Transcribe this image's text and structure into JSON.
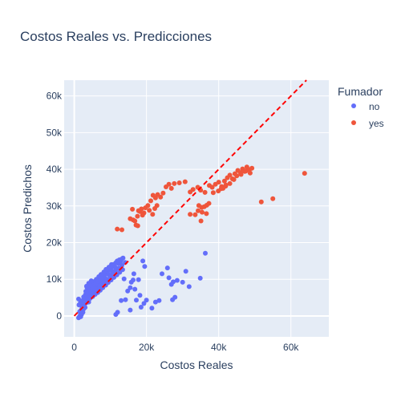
{
  "chart_data": {
    "type": "scatter",
    "title": "Costos Reales vs. Predicciones",
    "xlabel": "Costos Reales",
    "ylabel": "Costos Predichos",
    "xlim": [
      -2800,
      70500
    ],
    "ylim": [
      -5700,
      64300
    ],
    "xticks": [
      0,
      20000,
      40000,
      60000
    ],
    "xtick_labels": [
      "0",
      "20k",
      "40k",
      "60k"
    ],
    "yticks": [
      0,
      10000,
      20000,
      30000,
      40000,
      50000,
      60000
    ],
    "ytick_labels": [
      "0",
      "10k",
      "20k",
      "30k",
      "40k",
      "50k",
      "60k"
    ],
    "grid": true,
    "legend": {
      "title": "Fumador",
      "placement": "top-right"
    },
    "series": [
      {
        "name": "no",
        "color": "#636efa",
        "points": [
          [
            1200,
            -500
          ],
          [
            1400,
            -300
          ],
          [
            1600,
            100
          ],
          [
            1800,
            -200
          ],
          [
            2000,
            400
          ],
          [
            2200,
            800
          ],
          [
            1500,
            1200
          ],
          [
            1900,
            1600
          ],
          [
            2400,
            1000
          ],
          [
            2600,
            1900
          ],
          [
            2100,
            2600
          ],
          [
            1300,
            3000
          ],
          [
            1700,
            3600
          ],
          [
            2300,
            4200
          ],
          [
            1200,
            4600
          ],
          [
            2800,
            3100
          ],
          [
            3000,
            2300
          ],
          [
            3300,
            3600
          ],
          [
            3600,
            4400
          ],
          [
            3800,
            5000
          ],
          [
            4000,
            3800
          ],
          [
            4200,
            5600
          ],
          [
            4500,
            6000
          ],
          [
            4700,
            5200
          ],
          [
            4900,
            6600
          ],
          [
            5200,
            7100
          ],
          [
            5400,
            6300
          ],
          [
            5600,
            7600
          ],
          [
            5900,
            8100
          ],
          [
            6200,
            7300
          ],
          [
            6400,
            8600
          ],
          [
            6700,
            9100
          ],
          [
            7000,
            8300
          ],
          [
            7200,
            9700
          ],
          [
            7500,
            10100
          ],
          [
            7800,
            9400
          ],
          [
            8000,
            10600
          ],
          [
            8300,
            11100
          ],
          [
            8600,
            10300
          ],
          [
            8900,
            11600
          ],
          [
            9200,
            12100
          ],
          [
            9500,
            11300
          ],
          [
            9800,
            12600
          ],
          [
            10100,
            13100
          ],
          [
            10400,
            12300
          ],
          [
            10700,
            13600
          ],
          [
            11000,
            14100
          ],
          [
            11300,
            13300
          ],
          [
            11600,
            14600
          ],
          [
            11900,
            15000
          ],
          [
            12200,
            14300
          ],
          [
            12500,
            15300
          ],
          [
            12800,
            14800
          ],
          [
            13100,
            15500
          ],
          [
            13500,
            15800
          ],
          [
            3500,
            7800
          ],
          [
            4100,
            8500
          ],
          [
            4800,
            8900
          ],
          [
            5500,
            9400
          ],
          [
            6100,
            10000
          ],
          [
            6800,
            10700
          ],
          [
            7400,
            11300
          ],
          [
            8200,
            12000
          ],
          [
            8800,
            12700
          ],
          [
            9600,
            13300
          ],
          [
            10300,
            14000
          ],
          [
            3200,
            6700
          ],
          [
            3900,
            7200
          ],
          [
            4600,
            7900
          ],
          [
            5300,
            8400
          ],
          [
            6000,
            8900
          ],
          [
            6600,
            9500
          ],
          [
            7300,
            10200
          ],
          [
            2600,
            5200
          ],
          [
            3100,
            5800
          ],
          [
            3700,
            6500
          ],
          [
            4300,
            7000
          ],
          [
            5000,
            7500
          ],
          [
            5700,
            7400
          ],
          [
            6300,
            6800
          ],
          [
            7000,
            7600
          ],
          [
            7600,
            8400
          ],
          [
            8400,
            9200
          ],
          [
            9100,
            9900
          ],
          [
            9900,
            10700
          ],
          [
            10600,
            11500
          ],
          [
            11400,
            12300
          ],
          [
            12300,
            13000
          ],
          [
            13200,
            13800
          ],
          [
            14100,
            14600
          ],
          [
            4400,
            4800
          ],
          [
            5100,
            5300
          ],
          [
            5800,
            5900
          ],
          [
            6500,
            6400
          ],
          [
            7200,
            7000
          ],
          [
            7900,
            7700
          ],
          [
            8700,
            8400
          ],
          [
            9400,
            9100
          ],
          [
            10200,
            9800
          ],
          [
            11000,
            10500
          ],
          [
            11800,
            11200
          ],
          [
            12600,
            11900
          ],
          [
            13400,
            12600
          ],
          [
            3400,
            8100
          ],
          [
            4000,
            8900
          ],
          [
            4700,
            9600
          ],
          [
            2900,
            4800
          ],
          [
            3600,
            5400
          ],
          [
            19000,
            15000
          ],
          [
            19500,
            13500
          ],
          [
            16500,
            11500
          ],
          [
            15800,
            9200
          ],
          [
            14800,
            6800
          ],
          [
            16800,
            7300
          ],
          [
            18200,
            5600
          ],
          [
            17200,
            4300
          ],
          [
            15500,
            1600
          ],
          [
            13000,
            4200
          ],
          [
            14200,
            4400
          ],
          [
            12000,
            1000
          ],
          [
            11500,
            400
          ],
          [
            19300,
            3400
          ],
          [
            20000,
            4300
          ],
          [
            21500,
            2100
          ],
          [
            22500,
            3800
          ],
          [
            23500,
            4200
          ],
          [
            18500,
            2400
          ],
          [
            26200,
            10400
          ],
          [
            26900,
            8600
          ],
          [
            27400,
            9300
          ],
          [
            28500,
            9700
          ],
          [
            30000,
            9200
          ],
          [
            31800,
            8000
          ],
          [
            34900,
            10300
          ],
          [
            36300,
            17100
          ],
          [
            27200,
            4400
          ],
          [
            27900,
            5100
          ],
          [
            24300,
            11500
          ],
          [
            25800,
            13100
          ],
          [
            30900,
            12200
          ],
          [
            17800,
            9900
          ],
          [
            16300,
            9800
          ],
          [
            15500,
            7700
          ],
          [
            13800,
            10100
          ]
        ]
      },
      {
        "name": "yes",
        "color": "#ef553b",
        "points": [
          [
            11900,
            23700
          ],
          [
            13200,
            23500
          ],
          [
            15500,
            26500
          ],
          [
            16300,
            26200
          ],
          [
            17100,
            24800
          ],
          [
            16800,
            25900
          ],
          [
            17500,
            27200
          ],
          [
            18200,
            28500
          ],
          [
            18600,
            29200
          ],
          [
            19300,
            28100
          ],
          [
            16100,
            29100
          ],
          [
            17800,
            28700
          ],
          [
            18900,
            27500
          ],
          [
            19700,
            29500
          ],
          [
            20400,
            30100
          ],
          [
            21200,
            31400
          ],
          [
            21800,
            32900
          ],
          [
            22500,
            32200
          ],
          [
            23100,
            33100
          ],
          [
            23900,
            32400
          ],
          [
            24600,
            33500
          ],
          [
            25400,
            35200
          ],
          [
            26200,
            35900
          ],
          [
            26900,
            34800
          ],
          [
            27700,
            36100
          ],
          [
            29100,
            36300
          ],
          [
            30700,
            36600
          ],
          [
            22300,
            29300
          ],
          [
            21700,
            27700
          ],
          [
            20800,
            28800
          ],
          [
            17600,
            24600
          ],
          [
            22900,
            30100
          ],
          [
            32100,
            33800
          ],
          [
            32900,
            34500
          ],
          [
            34200,
            35100
          ],
          [
            35000,
            34300
          ],
          [
            36200,
            33700
          ],
          [
            37400,
            35600
          ],
          [
            38200,
            35100
          ],
          [
            39100,
            35900
          ],
          [
            40000,
            36500
          ],
          [
            40800,
            35300
          ],
          [
            41600,
            36800
          ],
          [
            42400,
            37700
          ],
          [
            43100,
            38400
          ],
          [
            43800,
            37400
          ],
          [
            44500,
            38800
          ],
          [
            45300,
            39700
          ],
          [
            46000,
            39100
          ],
          [
            46600,
            40100
          ],
          [
            47200,
            39400
          ],
          [
            47800,
            40600
          ],
          [
            48500,
            39900
          ],
          [
            49200,
            40300
          ],
          [
            34500,
            30100
          ],
          [
            35300,
            29600
          ],
          [
            36000,
            29800
          ],
          [
            36700,
            30200
          ],
          [
            37300,
            30700
          ],
          [
            35400,
            28300
          ],
          [
            36600,
            27900
          ],
          [
            35100,
            25900
          ],
          [
            34300,
            28700
          ],
          [
            32100,
            27700
          ],
          [
            33500,
            27600
          ],
          [
            40700,
            34700
          ],
          [
            41900,
            35400
          ],
          [
            43100,
            36100
          ],
          [
            51800,
            31100
          ],
          [
            55000,
            32000
          ],
          [
            63800,
            38900
          ],
          [
            38500,
            33600
          ],
          [
            39900,
            34100
          ],
          [
            41200,
            34800
          ],
          [
            42000,
            35700
          ],
          [
            44200,
            37200
          ],
          [
            45000,
            38200
          ],
          [
            46200,
            38600
          ],
          [
            47500,
            39500
          ],
          [
            48700,
            39000
          ]
        ]
      }
    ],
    "reference_line": {
      "color": "#ff0000",
      "style": "dashed",
      "from": [
        0,
        0
      ],
      "to": [
        64300,
        64300
      ]
    }
  }
}
